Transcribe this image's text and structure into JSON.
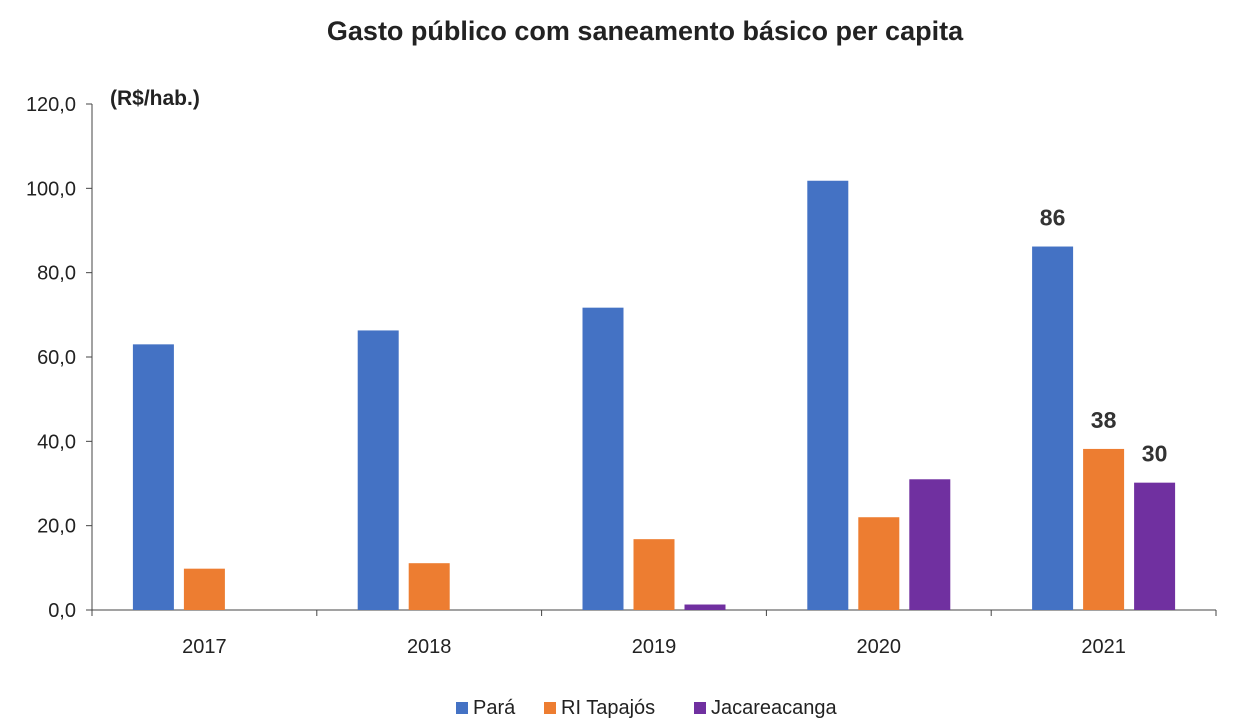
{
  "chart_data": {
    "type": "bar",
    "title": "Gasto público com saneamento básico per capita",
    "unit_label": "(R$/hab.)",
    "categories": [
      "2017",
      "2018",
      "2019",
      "2020",
      "2021"
    ],
    "series": [
      {
        "name": "Pará",
        "color": "#4472C4",
        "values": [
          63.0,
          66.3,
          71.7,
          101.8,
          86.2
        ]
      },
      {
        "name": "RI Tapajós",
        "color": "#ED7D31",
        "values": [
          9.8,
          11.1,
          16.8,
          22.0,
          38.2
        ]
      },
      {
        "name": "Jacareacanga",
        "color": "#7030A0",
        "values": [
          0.0,
          0.0,
          1.3,
          31.0,
          30.2
        ]
      }
    ],
    "data_labels": [
      {
        "category": "2021",
        "series": "Pará",
        "text": "86"
      },
      {
        "category": "2021",
        "series": "RI Tapajós",
        "text": "38"
      },
      {
        "category": "2021",
        "series": "Jacareacanga",
        "text": "30"
      }
    ],
    "y_ticks": [
      "0,0",
      "20,0",
      "40,0",
      "60,0",
      "80,0",
      "100,0",
      "120,0"
    ],
    "ylim": [
      0,
      120
    ],
    "grid": false,
    "legend_position": "bottom"
  }
}
